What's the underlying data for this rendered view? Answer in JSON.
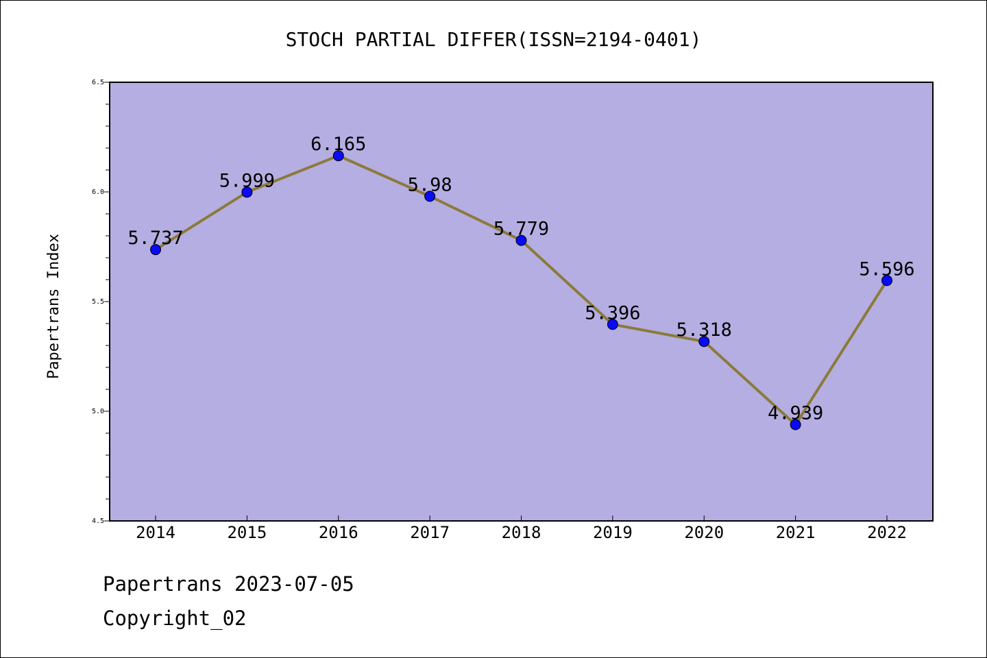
{
  "chart_data": {
    "type": "line",
    "title": "STOCH PARTIAL DIFFER(ISSN=2194-0401)",
    "xlabel": "",
    "ylabel": "Papertrans Index",
    "categories": [
      "2014",
      "2015",
      "2016",
      "2017",
      "2018",
      "2019",
      "2020",
      "2021",
      "2022"
    ],
    "series": [
      {
        "values": [
          5.737,
          5.999,
          6.165,
          5.98,
          5.779,
          5.396,
          5.318,
          4.939,
          5.596
        ],
        "data_labels": [
          "5.737",
          "5.999",
          "6.165",
          "5.98",
          "5.779",
          "5.396",
          "5.318",
          "4.939",
          "5.596"
        ]
      }
    ],
    "ylim": [
      4.5,
      6.5
    ],
    "yticks": [
      "4.5",
      "5.0",
      "5.5",
      "6.0",
      "6.5"
    ],
    "grid": false,
    "legend": "none",
    "colors": {
      "plot_background": "#b5aee2",
      "line": "#8b7a3a",
      "marker": "#0a0af5"
    }
  },
  "footer": {
    "line1": "Papertrans 2023-07-05",
    "line2": "Copyright_02"
  }
}
